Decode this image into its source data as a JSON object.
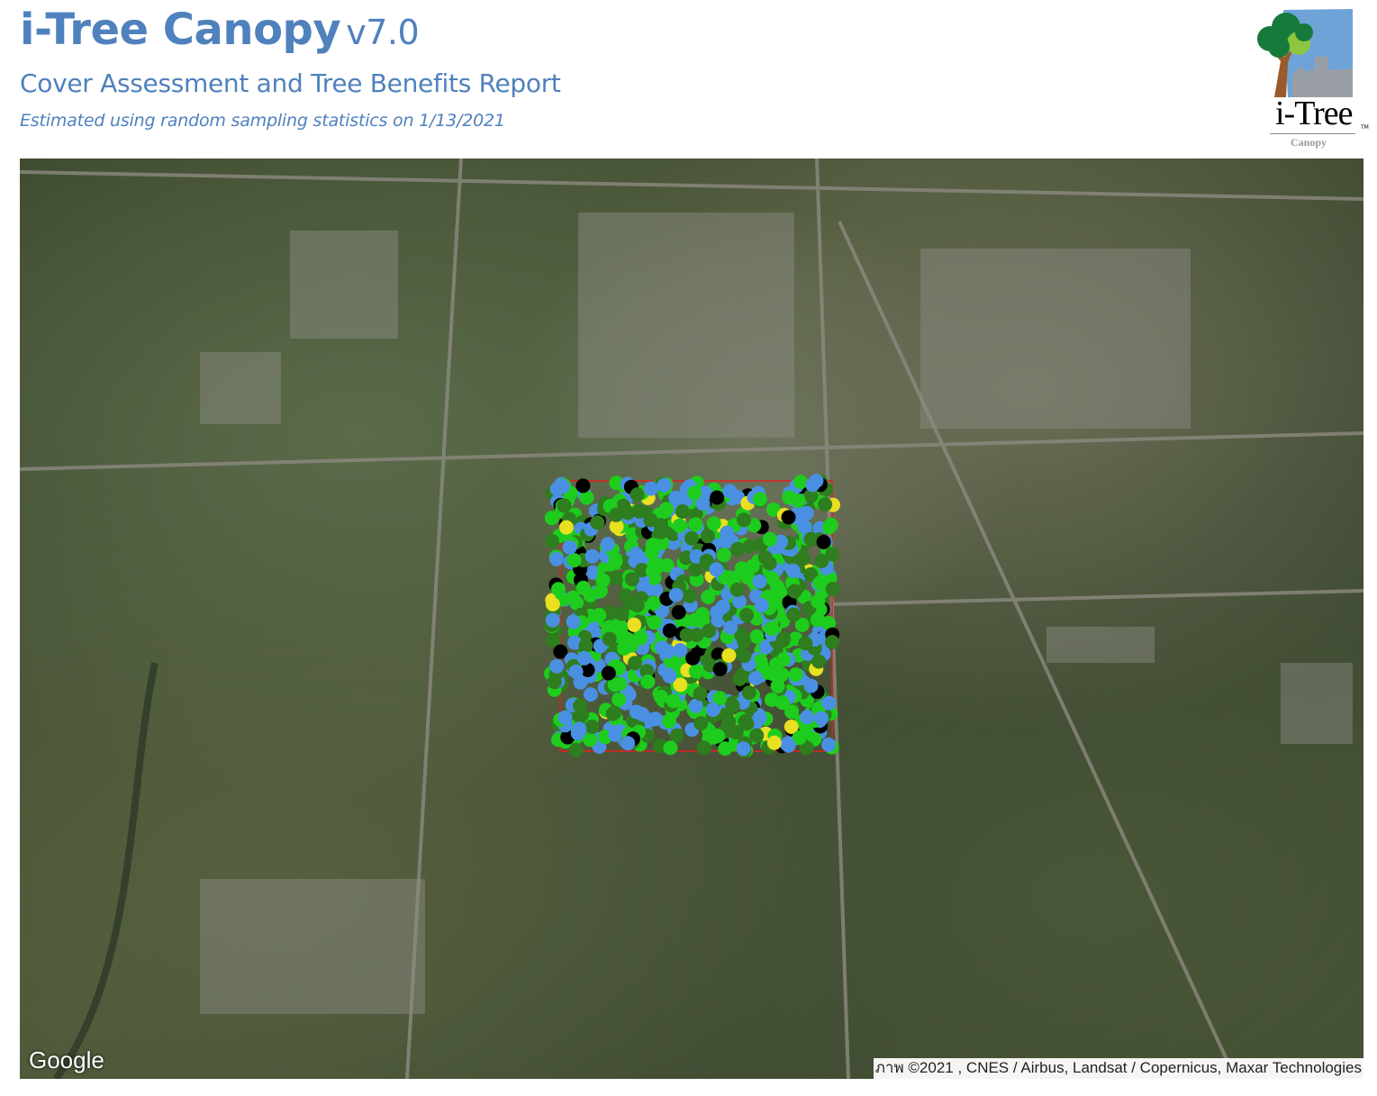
{
  "header": {
    "title": "i-Tree Canopy",
    "version": "v7.0",
    "subtitle": "Cover Assessment and Tree Benefits Report",
    "estimate_note": "Estimated using random sampling statistics on 1/13/2021"
  },
  "logo": {
    "wordmark": "i-Tree",
    "trademark": "TM",
    "product": "Canopy"
  },
  "map": {
    "provider_logo": "Google",
    "attribution": "ภาพ ©2021 , CNES / Airbus, Landsat / Copernicus, Maxar Technologies",
    "boundary_color": "#e02020",
    "point_colors": [
      "#4a90e2",
      "#1ecc1e",
      "#2e7d1e",
      "#000000",
      "#e8e020"
    ]
  }
}
